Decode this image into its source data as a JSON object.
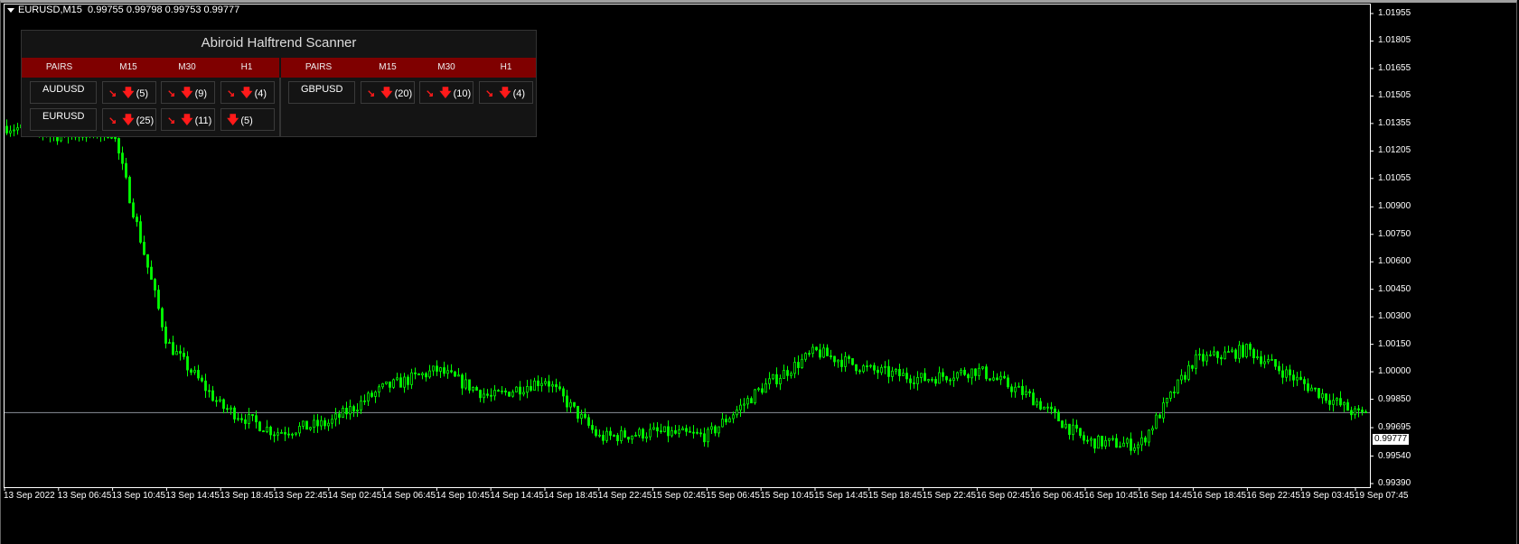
{
  "chart_header": {
    "symbol": "EURUSD,M15",
    "ohlc": "0.99755 0.99798 0.99753 0.99777"
  },
  "colors": {
    "candle": "#00ff00",
    "background": "#000000",
    "price_line": "#8a8f99",
    "panel_header": "#7f0000",
    "arrow": "#ff1a1a"
  },
  "chart_data": {
    "type": "candlestick",
    "price_ticks": [
      "1.01955",
      "1.01805",
      "1.01655",
      "1.01505",
      "1.01355",
      "1.01205",
      "1.01055",
      "1.00900",
      "1.00750",
      "1.00600",
      "1.00450",
      "1.00300",
      "1.00150",
      "1.00000",
      "0.99850",
      "0.99695",
      "0.99540",
      "0.99390"
    ],
    "ylim": [
      0.9939,
      1.01955
    ],
    "time_ticks": [
      "13 Sep 2022",
      "13 Sep 06:45",
      "13 Sep 10:45",
      "13 Sep 14:45",
      "13 Sep 18:45",
      "13 Sep 22:45",
      "14 Sep 02:45",
      "14 Sep 06:45",
      "14 Sep 10:45",
      "14 Sep 14:45",
      "14 Sep 18:45",
      "14 Sep 22:45",
      "15 Sep 02:45",
      "15 Sep 06:45",
      "15 Sep 10:45",
      "15 Sep 14:45",
      "15 Sep 18:45",
      "15 Sep 22:45",
      "16 Sep 02:45",
      "16 Sep 06:45",
      "16 Sep 10:45",
      "16 Sep 14:45",
      "16 Sep 18:45",
      "16 Sep 22:45",
      "19 Sep 03:45",
      "19 Sep 07:45"
    ],
    "close_path": [
      1.0134,
      1.0129,
      1.0131,
      1.0016,
      0.9981,
      0.9967,
      0.9972,
      0.9991,
      1.0001,
      0.9986,
      0.9996,
      0.9964,
      0.9967,
      0.9965,
      0.9991,
      1.0011,
      1.0001,
      0.9996,
      1.0001,
      0.9986,
      0.9962,
      0.996,
      1.0006,
      1.0012,
      0.9994,
      0.9977
    ],
    "current_price": "0.99777"
  },
  "scanner": {
    "title": "Abiroid Halftrend Scanner",
    "headers": [
      "PAIRS",
      "M15",
      "M30",
      "H1"
    ],
    "left": [
      {
        "pair": "AUDUSD",
        "signals": [
          {
            "diag": true,
            "count": "(5)"
          },
          {
            "diag": true,
            "count": "(9)"
          },
          {
            "diag": true,
            "count": "(4)"
          }
        ]
      },
      {
        "pair": "EURUSD",
        "signals": [
          {
            "diag": true,
            "count": "(25)"
          },
          {
            "diag": true,
            "count": "(11)"
          },
          {
            "diag": false,
            "count": "(5)"
          }
        ]
      }
    ],
    "right": [
      {
        "pair": "GBPUSD",
        "signals": [
          {
            "diag": true,
            "count": "(20)"
          },
          {
            "diag": true,
            "count": "(10)"
          },
          {
            "diag": true,
            "count": "(4)"
          }
        ]
      }
    ],
    "icons": {
      "diag": "arrow-down-right",
      "down": "arrow-down"
    }
  }
}
